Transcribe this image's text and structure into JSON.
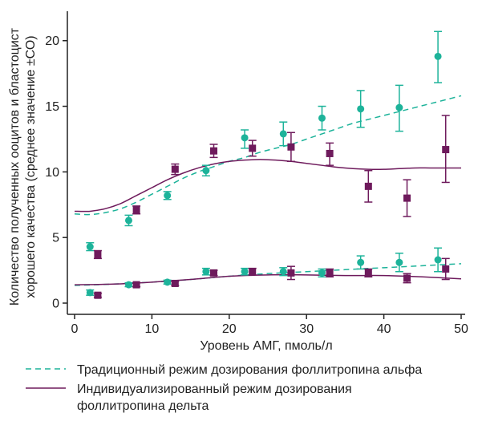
{
  "chart_data": {
    "type": "scatter",
    "xlabel": "Уровень АМГ, пмоль/л",
    "ylabel_lines": [
      "Количество полученных ооцитов и бластоцист",
      "хорошего качества (среднее значение ±СО)"
    ],
    "xlim": [
      0,
      50
    ],
    "ylim": [
      0,
      22
    ],
    "xticks": [
      0,
      10,
      20,
      30,
      40,
      50
    ],
    "yticks": [
      0,
      5,
      10,
      15,
      20
    ],
    "grid": false,
    "legend_position": "bottom",
    "legend": [
      {
        "lines": [
          "Традиционный режим дозирования фоллитропина альфа"
        ],
        "style": "dashed",
        "color": "#1db39a"
      },
      {
        "lines": [
          "Индивидуализированный режим дозирования",
          "фоллитропина дельта"
        ],
        "style": "solid",
        "color": "#6e1a5c"
      }
    ],
    "series": [
      {
        "kind": "points",
        "marker": "circle",
        "color": "#1db39a",
        "points": [
          {
            "x": 2,
            "y": 4.3,
            "lo": 4.0,
            "hi": 4.6
          },
          {
            "x": 7,
            "y": 6.3,
            "lo": 5.9,
            "hi": 6.7
          },
          {
            "x": 12,
            "y": 8.2,
            "lo": 7.9,
            "hi": 8.5
          },
          {
            "x": 17,
            "y": 10.1,
            "lo": 9.7,
            "hi": 10.5
          },
          {
            "x": 22,
            "y": 12.6,
            "lo": 11.8,
            "hi": 13.2
          },
          {
            "x": 27,
            "y": 12.9,
            "lo": 12.0,
            "hi": 13.8
          },
          {
            "x": 32,
            "y": 14.1,
            "lo": 13.2,
            "hi": 15.0
          },
          {
            "x": 37,
            "y": 14.8,
            "lo": 13.4,
            "hi": 16.2
          },
          {
            "x": 42,
            "y": 14.9,
            "lo": 13.1,
            "hi": 16.6
          },
          {
            "x": 47,
            "y": 18.8,
            "lo": 16.8,
            "hi": 20.7
          }
        ]
      },
      {
        "kind": "points",
        "marker": "square",
        "color": "#6e1a5c",
        "points": [
          {
            "x": 3,
            "y": 3.7,
            "lo": 3.4,
            "hi": 4.0
          },
          {
            "x": 8,
            "y": 7.1,
            "lo": 6.8,
            "hi": 7.4
          },
          {
            "x": 13,
            "y": 10.2,
            "lo": 9.8,
            "hi": 10.6
          },
          {
            "x": 18,
            "y": 11.6,
            "lo": 11.1,
            "hi": 12.1
          },
          {
            "x": 23,
            "y": 11.8,
            "lo": 11.2,
            "hi": 12.4
          },
          {
            "x": 28,
            "y": 11.9,
            "lo": 10.8,
            "hi": 13.0
          },
          {
            "x": 33,
            "y": 11.4,
            "lo": 10.5,
            "hi": 12.2
          },
          {
            "x": 38,
            "y": 8.9,
            "lo": 7.7,
            "hi": 10.1
          },
          {
            "x": 43,
            "y": 8.0,
            "lo": 6.6,
            "hi": 9.4
          },
          {
            "x": 48,
            "y": 11.7,
            "lo": 9.2,
            "hi": 14.3
          }
        ]
      },
      {
        "kind": "points",
        "marker": "circle",
        "color": "#1db39a",
        "points": [
          {
            "x": 2,
            "y": 0.8,
            "lo": 0.6,
            "hi": 1.0
          },
          {
            "x": 7,
            "y": 1.4,
            "lo": 1.25,
            "hi": 1.55
          },
          {
            "x": 12,
            "y": 1.6,
            "lo": 1.45,
            "hi": 1.75
          },
          {
            "x": 17,
            "y": 2.4,
            "lo": 2.15,
            "hi": 2.65
          },
          {
            "x": 22,
            "y": 2.4,
            "lo": 2.15,
            "hi": 2.65
          },
          {
            "x": 27,
            "y": 2.4,
            "lo": 2.1,
            "hi": 2.7
          },
          {
            "x": 32,
            "y": 2.3,
            "lo": 2.0,
            "hi": 2.6
          },
          {
            "x": 37,
            "y": 3.1,
            "lo": 2.6,
            "hi": 3.6
          },
          {
            "x": 42,
            "y": 3.1,
            "lo": 2.4,
            "hi": 3.8
          },
          {
            "x": 47,
            "y": 3.3,
            "lo": 2.4,
            "hi": 4.2
          }
        ]
      },
      {
        "kind": "points",
        "marker": "square",
        "color": "#6e1a5c",
        "points": [
          {
            "x": 3,
            "y": 0.6,
            "lo": 0.45,
            "hi": 0.75
          },
          {
            "x": 8,
            "y": 1.4,
            "lo": 1.25,
            "hi": 1.55
          },
          {
            "x": 13,
            "y": 1.5,
            "lo": 1.35,
            "hi": 1.65
          },
          {
            "x": 18,
            "y": 2.3,
            "lo": 2.1,
            "hi": 2.5
          },
          {
            "x": 23,
            "y": 2.4,
            "lo": 2.15,
            "hi": 2.65
          },
          {
            "x": 28,
            "y": 2.3,
            "lo": 1.8,
            "hi": 2.8
          },
          {
            "x": 33,
            "y": 2.3,
            "lo": 2.0,
            "hi": 2.6
          },
          {
            "x": 38,
            "y": 2.3,
            "lo": 2.0,
            "hi": 2.6
          },
          {
            "x": 43,
            "y": 1.9,
            "lo": 1.55,
            "hi": 2.25
          },
          {
            "x": 48,
            "y": 2.6,
            "lo": 1.8,
            "hi": 3.4
          }
        ]
      },
      {
        "kind": "curve",
        "style": "dashed",
        "color": "#1db39a",
        "x": [
          0,
          2,
          4,
          6,
          8,
          10,
          12,
          14,
          16,
          18,
          20,
          22,
          24,
          26,
          28,
          30,
          32,
          34,
          36,
          38,
          40,
          42,
          44,
          46,
          48,
          50
        ],
        "y": [
          6.8,
          6.75,
          6.9,
          7.2,
          7.7,
          8.3,
          8.9,
          9.5,
          10.0,
          10.4,
          10.8,
          11.1,
          11.5,
          11.8,
          12.1,
          12.5,
          12.9,
          13.3,
          13.7,
          14.0,
          14.3,
          14.6,
          14.9,
          15.2,
          15.5,
          15.8
        ]
      },
      {
        "kind": "curve",
        "style": "solid",
        "color": "#6e1a5c",
        "x": [
          0,
          2,
          4,
          6,
          8,
          10,
          12,
          14,
          16,
          18,
          20,
          22,
          24,
          26,
          28,
          30,
          32,
          34,
          36,
          38,
          40,
          42,
          44,
          46,
          48,
          50
        ],
        "y": [
          7.0,
          7.0,
          7.2,
          7.6,
          8.2,
          8.8,
          9.4,
          9.9,
          10.3,
          10.6,
          10.8,
          10.9,
          10.95,
          10.9,
          10.8,
          10.65,
          10.5,
          10.35,
          10.25,
          10.2,
          10.2,
          10.25,
          10.3,
          10.3,
          10.3,
          10.3
        ]
      },
      {
        "kind": "curve",
        "style": "dashed",
        "color": "#1db39a",
        "x": [
          0,
          5,
          10,
          15,
          20,
          25,
          30,
          35,
          40,
          45,
          50
        ],
        "y": [
          1.35,
          1.45,
          1.6,
          1.8,
          2.05,
          2.25,
          2.4,
          2.55,
          2.7,
          2.85,
          3.0
        ]
      },
      {
        "kind": "curve",
        "style": "solid",
        "color": "#6e1a5c",
        "x": [
          0,
          5,
          10,
          15,
          20,
          25,
          30,
          35,
          40,
          45,
          50
        ],
        "y": [
          1.4,
          1.45,
          1.6,
          1.8,
          2.05,
          2.15,
          2.15,
          2.1,
          2.1,
          2.0,
          1.85
        ]
      }
    ]
  }
}
